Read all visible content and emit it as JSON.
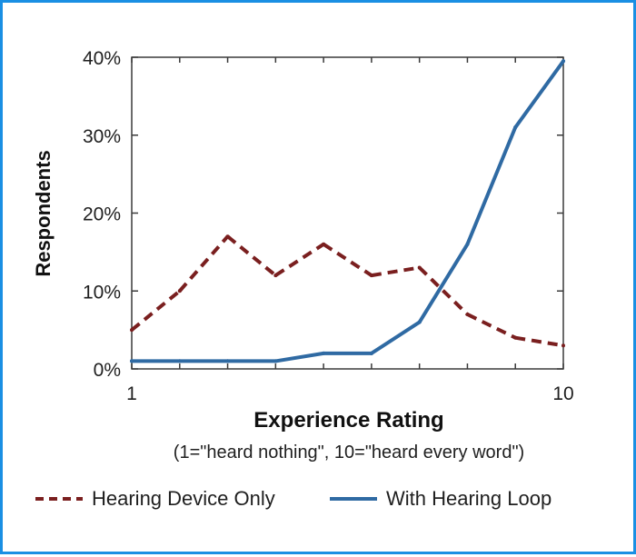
{
  "chart_data": {
    "type": "line",
    "title": "",
    "xlabel": "Experience Rating",
    "xsublabel": "(1=\"heard nothing\", 10=\"heard every word\")",
    "ylabel": "Respondents",
    "x": [
      1,
      2,
      3,
      4,
      5,
      6,
      7,
      8,
      9,
      10
    ],
    "xlim": [
      1,
      10
    ],
    "ylim": [
      0,
      40
    ],
    "x_tick_labels": [
      {
        "x": 1,
        "label": "1"
      },
      {
        "x": 10,
        "label": "10"
      }
    ],
    "y_tick_labels": [
      {
        "y": 0,
        "label": "0%"
      },
      {
        "y": 10,
        "label": "10%"
      },
      {
        "y": 20,
        "label": "20%"
      },
      {
        "y": 30,
        "label": "30%"
      },
      {
        "y": 40,
        "label": "40%"
      }
    ],
    "series": [
      {
        "name": "Hearing Device Only",
        "style": "dashed",
        "color": "#7a1f1f",
        "values": [
          5,
          10,
          17,
          12,
          16,
          12,
          13,
          7,
          4,
          3
        ]
      },
      {
        "name": "With Hearing Loop",
        "style": "solid",
        "color": "#2f6aa3",
        "values": [
          1,
          1,
          1,
          1,
          2,
          2,
          6,
          16,
          31,
          39.5
        ]
      }
    ],
    "legend_position": "bottom",
    "grid": false
  }
}
